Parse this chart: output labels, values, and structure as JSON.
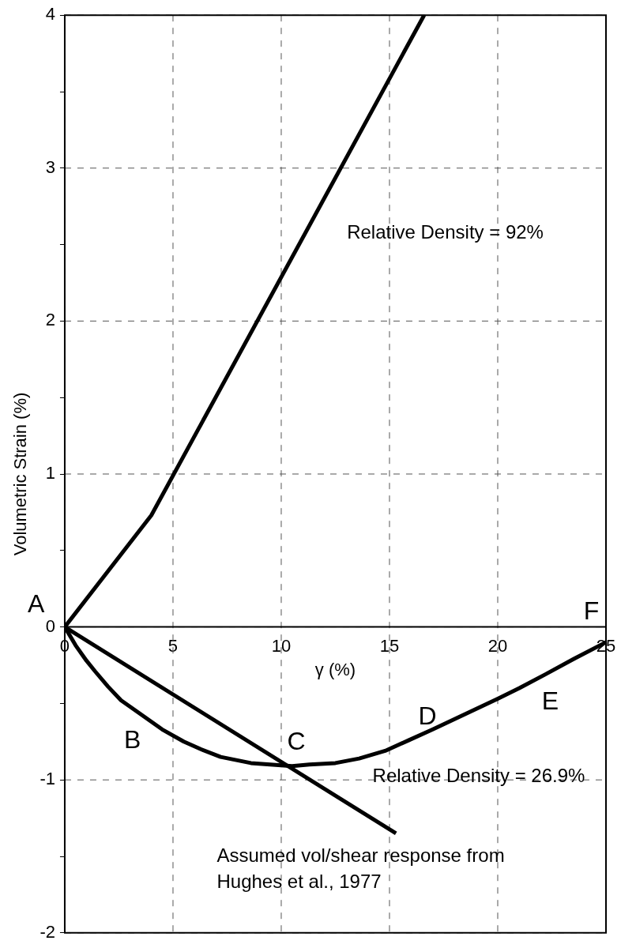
{
  "chart_data": {
    "type": "line",
    "xlabel": "γ (%)",
    "ylabel": "Volumetric Strain (%)",
    "xlim": [
      0,
      25
    ],
    "xticks": [
      0,
      5,
      10,
      15,
      20,
      25
    ],
    "ylim": [
      -2,
      4
    ],
    "yticks": [
      -2,
      {
        "value": -1.5,
        "label": null
      },
      -1,
      {
        "value": -0.5,
        "label": null
      },
      0,
      {
        "value": 0.5,
        "label": null
      },
      1,
      {
        "value": 1.5,
        "label": null
      },
      2,
      {
        "value": 2.5,
        "label": null
      },
      3,
      {
        "value": 3.5,
        "label": null
      },
      4
    ],
    "grid": true,
    "legend": false,
    "marker": "none",
    "line_style": "solid",
    "series": [
      {
        "color": "#000000",
        "x": [
          0,
          4,
          16.6
        ],
        "values": [
          0,
          0.73,
          4
        ]
      },
      {
        "color": "#000000",
        "x": [
          0,
          15.3
        ],
        "values": [
          0,
          -1.35
        ]
      },
      {
        "color": "#000000",
        "x": [
          0,
          0.5,
          1,
          1.4,
          2,
          2.6,
          3.7,
          4.5,
          5.5,
          6.3,
          7.2,
          8.6,
          10.5,
          11.3,
          12.5,
          13.6,
          14.8,
          15.9,
          17,
          18.2,
          20,
          21,
          22.2,
          23.5,
          25
        ],
        "values": [
          0,
          -0.12,
          -0.22,
          -0.29,
          -0.39,
          -0.48,
          -0.59,
          -0.67,
          -0.75,
          -0.8,
          -0.85,
          -0.89,
          -0.91,
          -0.9,
          -0.89,
          -0.86,
          -0.81,
          -0.74,
          -0.67,
          -0.59,
          -0.47,
          -0.4,
          -0.31,
          -0.21,
          -0.1
        ]
      }
    ],
    "annotations": [
      "A",
      "B",
      "C",
      "D",
      "E",
      "F",
      "Relative Density = 92%",
      "Relative Density = 26.9%",
      "Assumed vol/shear response from Hughes et al., 1977"
    ]
  }
}
